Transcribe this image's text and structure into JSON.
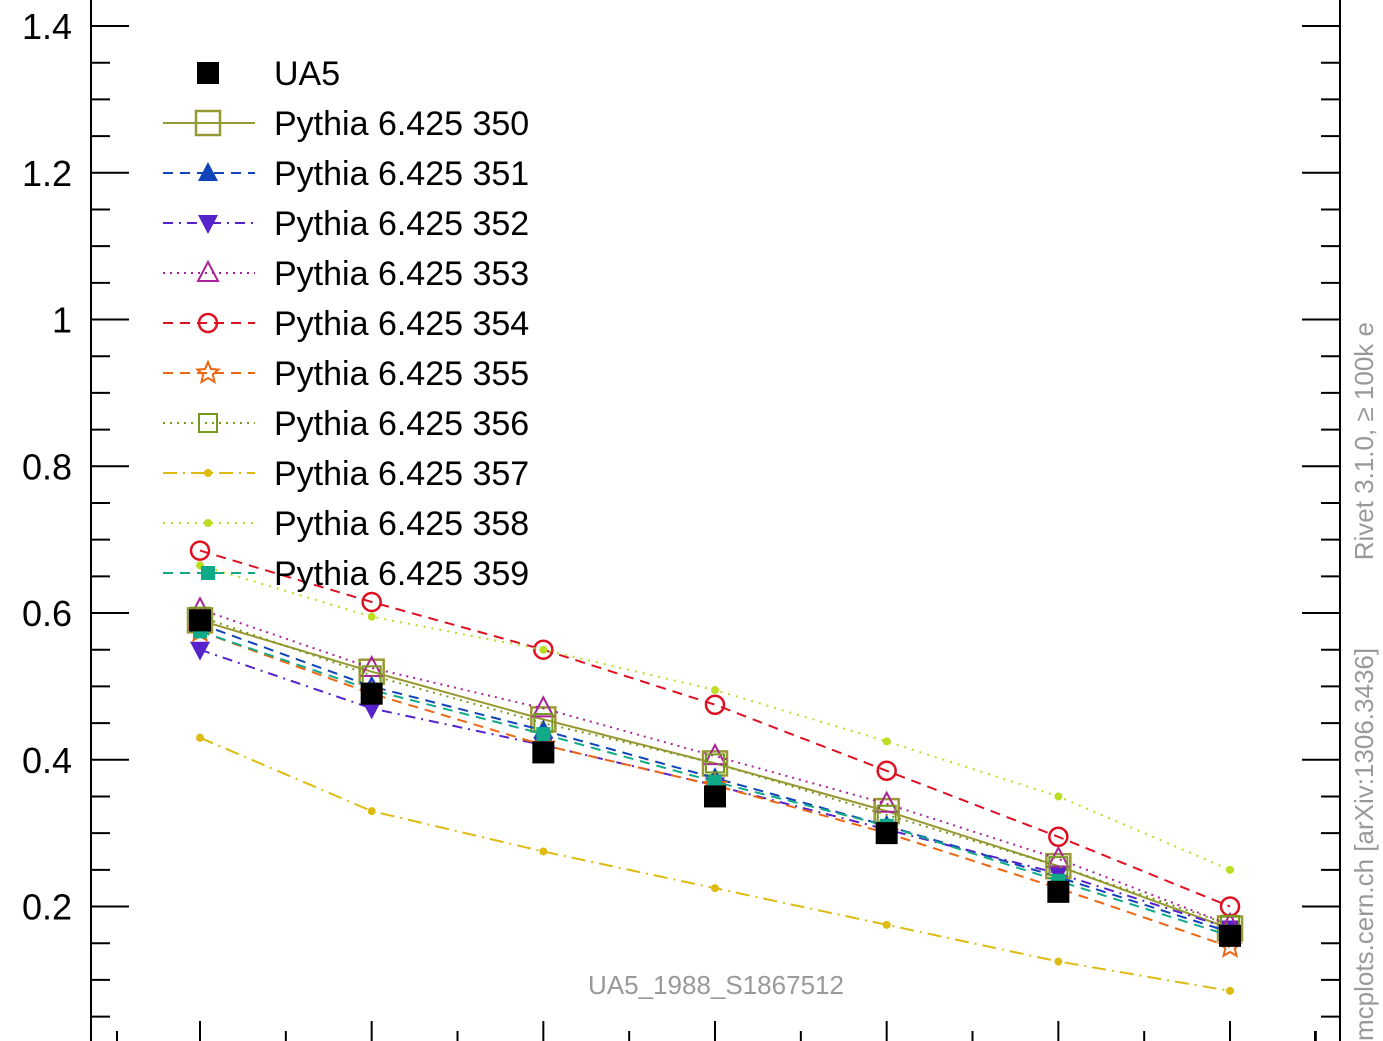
{
  "chart_data": {
    "type": "line",
    "title": "",
    "xlabel": "",
    "ylabel": "",
    "ylim": [
      0.0,
      1.43
    ],
    "x": [
      1,
      2,
      3,
      4,
      5,
      6,
      7
    ],
    "y_ticks": [
      {
        "value": 0.2,
        "label": "0.2"
      },
      {
        "value": 0.4,
        "label": "0.4"
      },
      {
        "value": 0.6,
        "label": "0.6"
      },
      {
        "value": 0.8,
        "label": "0.8"
      },
      {
        "value": 1.0,
        "label": "1"
      },
      {
        "value": 1.2,
        "label": "1.2"
      },
      {
        "value": 1.4,
        "label": "1.4"
      }
    ],
    "legend_position": "top-left",
    "series": [
      {
        "name": "UA5",
        "color": "#000000",
        "dash": "none",
        "marker": "filled-square",
        "line": false,
        "values": [
          0.59,
          0.49,
          0.41,
          0.35,
          0.3,
          0.22,
          0.16
        ]
      },
      {
        "name": "Pythia 6.425 350",
        "color": "#999933",
        "dash": "none",
        "marker": "open-square",
        "line": true,
        "values": [
          0.59,
          0.52,
          0.455,
          0.395,
          0.33,
          0.255,
          0.17
        ]
      },
      {
        "name": "Pythia 6.425 351",
        "color": "#1144bb",
        "dash": "10,7",
        "marker": "filled-triangle-up",
        "line": true,
        "values": [
          0.585,
          0.5,
          0.44,
          0.375,
          0.31,
          0.24,
          0.165
        ]
      },
      {
        "name": "Pythia 6.425 352",
        "color": "#5522cc",
        "dash": "10,6,2,6",
        "marker": "filled-triangle-down",
        "line": true,
        "values": [
          0.55,
          0.47,
          0.42,
          0.365,
          0.305,
          0.245,
          0.17
        ]
      },
      {
        "name": "Pythia 6.425 353",
        "color": "#aa2299",
        "dash": "2,5",
        "marker": "open-triangle-up",
        "line": true,
        "values": [
          0.605,
          0.525,
          0.47,
          0.405,
          0.34,
          0.265,
          0.175
        ]
      },
      {
        "name": "Pythia 6.425 354",
        "color": "#dd1122",
        "dash": "10,7",
        "marker": "open-circle",
        "line": true,
        "values": [
          0.685,
          0.615,
          0.55,
          0.475,
          0.385,
          0.295,
          0.2
        ]
      },
      {
        "name": "Pythia 6.425 355",
        "color": "#ee6611",
        "dash": "10,7",
        "marker": "open-star",
        "line": true,
        "values": [
          0.575,
          0.49,
          0.42,
          0.365,
          0.3,
          0.225,
          0.145
        ]
      },
      {
        "name": "Pythia 6.425 356",
        "color": "#779922",
        "dash": "2,5",
        "marker": "open-square-small",
        "line": true,
        "values": [
          0.595,
          0.515,
          0.45,
          0.395,
          0.325,
          0.255,
          0.175
        ]
      },
      {
        "name": "Pythia 6.425 357",
        "color": "#ddbb11",
        "dash": "14,6,2,6",
        "marker": "dot",
        "line": true,
        "values": [
          0.43,
          0.33,
          0.275,
          0.225,
          0.175,
          0.125,
          0.085
        ]
      },
      {
        "name": "Pythia 6.425 358",
        "color": "#bbdd22",
        "dash": "2,6",
        "marker": "dot",
        "line": true,
        "values": [
          0.665,
          0.595,
          0.55,
          0.495,
          0.425,
          0.35,
          0.25
        ]
      },
      {
        "name": "Pythia 6.425 359",
        "color": "#11aa88",
        "dash": "10,7",
        "marker": "filled-square-small",
        "line": true,
        "values": [
          0.575,
          0.495,
          0.435,
          0.37,
          0.31,
          0.235,
          0.16
        ]
      }
    ]
  },
  "side_text_top": "Rivet 3.1.0, ≥ 100k e",
  "side_text_bottom": "mcplots.cern.ch [arXiv:1306.3436]",
  "analysis_id": "UA5_1988_S1867512"
}
